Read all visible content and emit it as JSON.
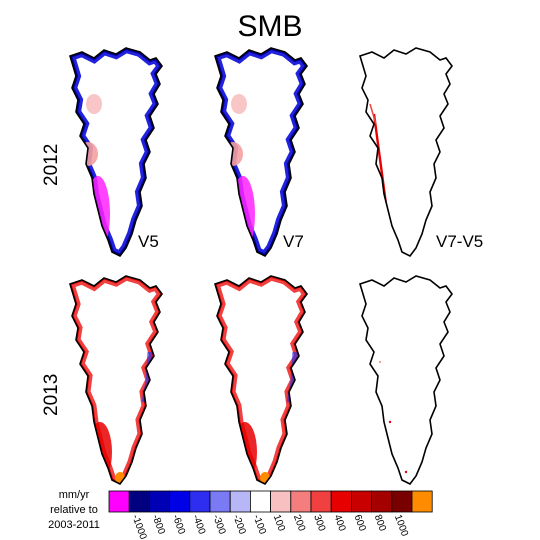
{
  "figure": {
    "title": "SMB",
    "rows": [
      {
        "label": "2012"
      },
      {
        "label": "2013"
      }
    ],
    "columns": [
      "V5",
      "V7",
      "V7-V5"
    ]
  },
  "colorbar": {
    "caption_lines": [
      "mm/yr",
      "relative to",
      "2003-2011"
    ],
    "colors": [
      "#ff00ff",
      "#000080",
      "#0000b4",
      "#0000e6",
      "#2e2ef0",
      "#7a7af5",
      "#b7b7f8",
      "#ffffff",
      "#f8c0c0",
      "#f47e7e",
      "#f04040",
      "#e60000",
      "#c80000",
      "#a50000",
      "#780000",
      "#ff8c00"
    ],
    "tick_labels": [
      "-1000",
      "-800",
      "-600",
      "-400",
      "-300",
      "-200",
      "-100",
      "100",
      "200",
      "300",
      "400",
      "600",
      "800",
      "1000"
    ]
  }
}
